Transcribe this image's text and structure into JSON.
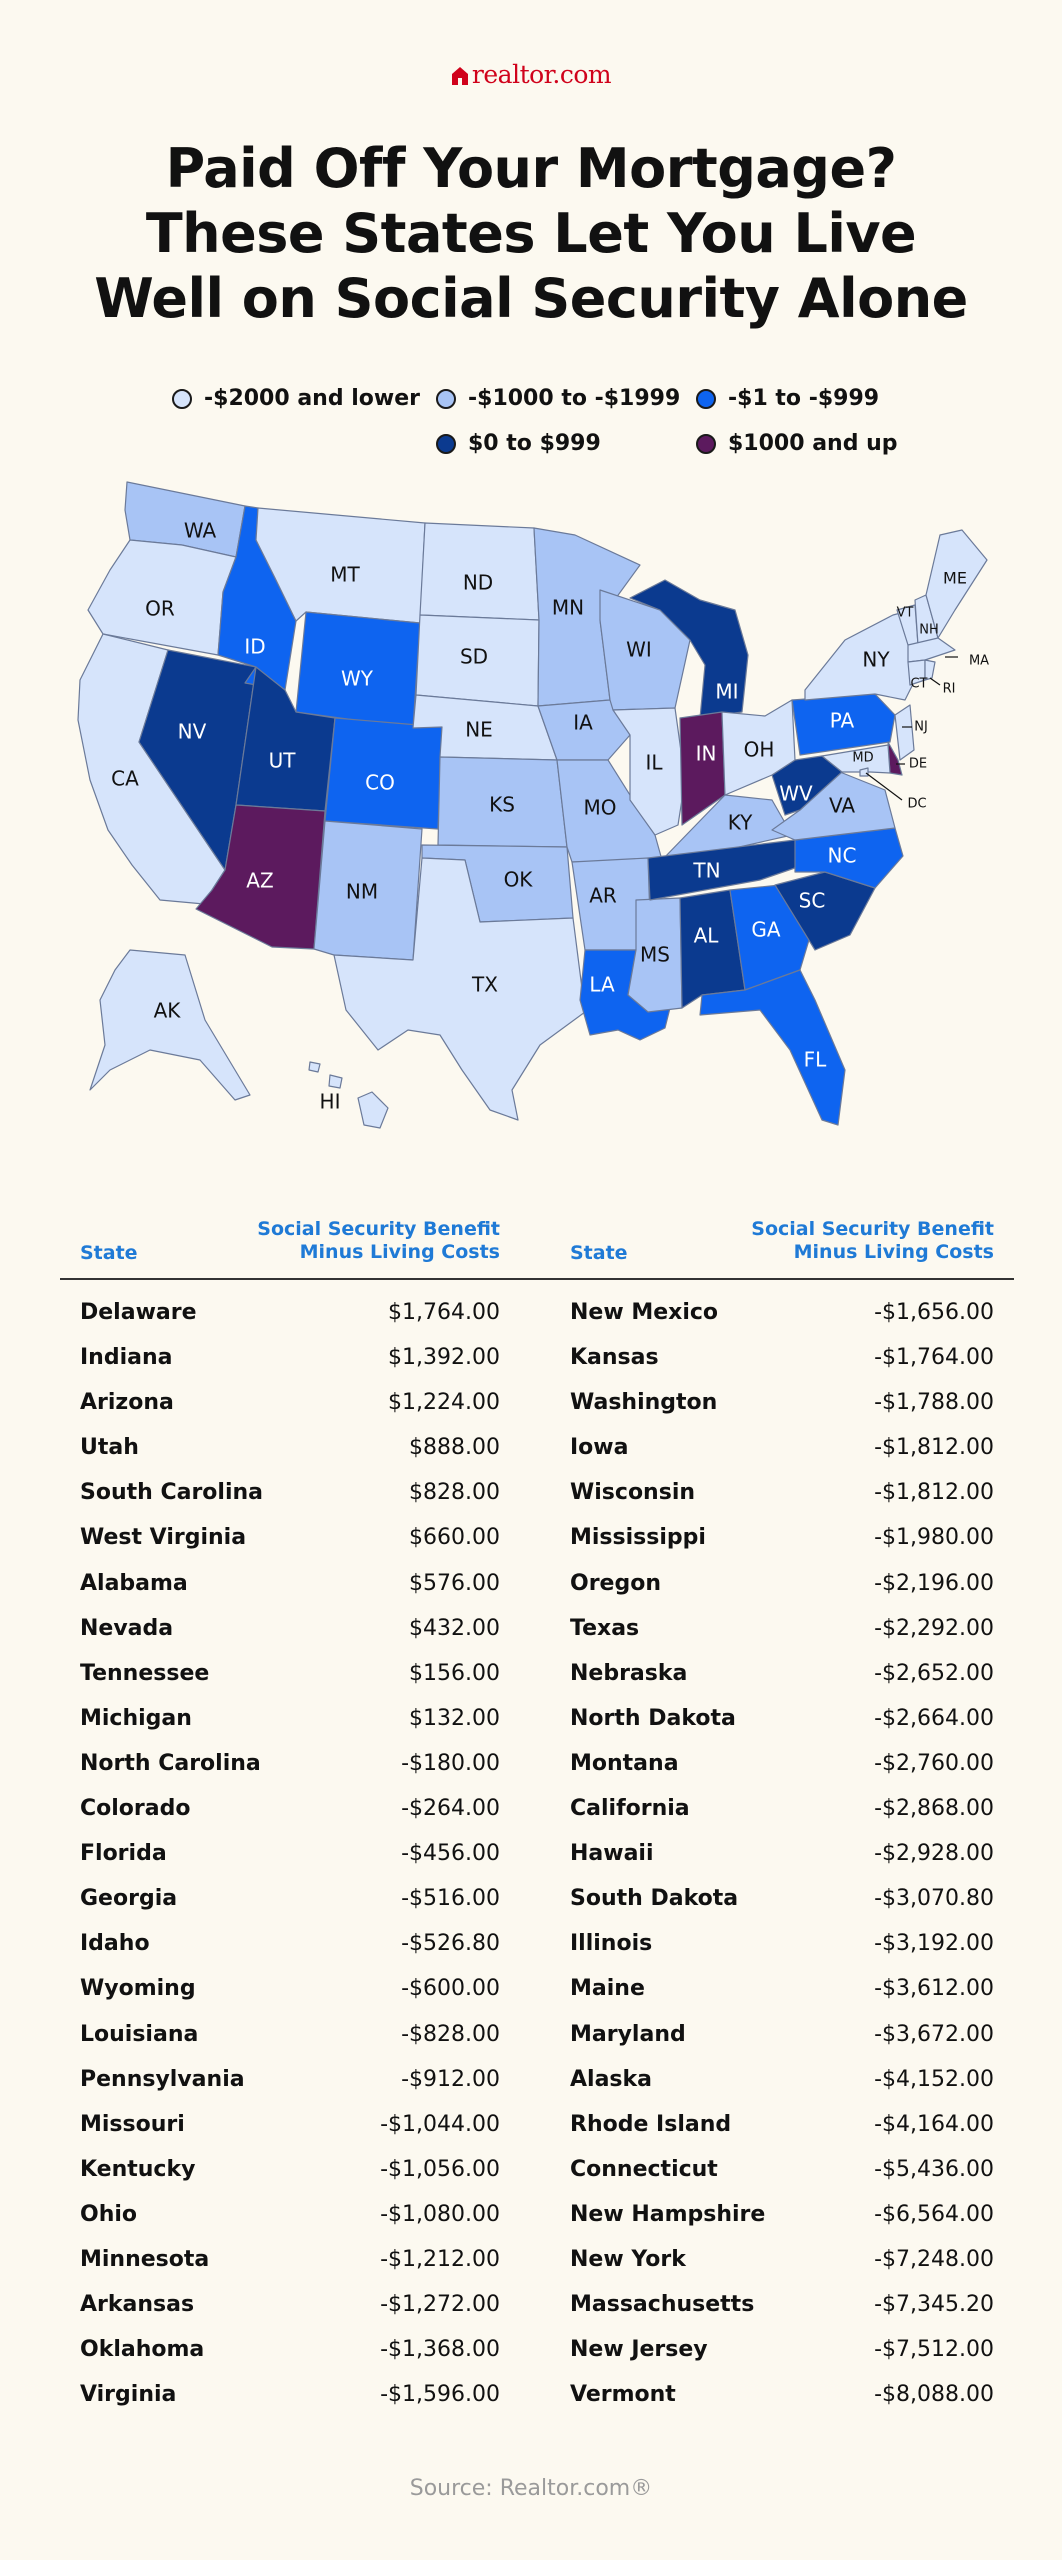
{
  "brand": {
    "logo_text": "realtor.com",
    "accent": "#d0021b"
  },
  "title": {
    "line1": "Paid Off Your Mortgage?",
    "line2": "These States Let You Live",
    "line3": "Well on Social Security Alone"
  },
  "legend": [
    {
      "label": "-$2000 and lower",
      "color": "#d6e4fb"
    },
    {
      "label": "-$1000 to -$1999",
      "color": "#a8c4f5"
    },
    {
      "label": "-$1 to -$999",
      "color": "#0e64f0"
    },
    {
      "label": "$0 to $999",
      "color": "#0b3a8f"
    },
    {
      "label": "$1000 and up",
      "color": "#5c1a5e"
    }
  ],
  "map_labels": {
    "WA": "WA",
    "OR": "OR",
    "CA": "CA",
    "NV": "NV",
    "ID": "ID",
    "MT": "MT",
    "WY": "WY",
    "UT": "UT",
    "AZ": "AZ",
    "CO": "CO",
    "NM": "NM",
    "ND": "ND",
    "SD": "SD",
    "NE": "NE",
    "KS": "KS",
    "OK": "OK",
    "TX": "TX",
    "MN": "MN",
    "IA": "IA",
    "MO": "MO",
    "AR": "AR",
    "LA": "LA",
    "WI": "WI",
    "IL": "IL",
    "MS": "MS",
    "MI": "MI",
    "IN": "IN",
    "KY": "KY",
    "TN": "TN",
    "AL": "AL",
    "OH": "OH",
    "WV": "WV",
    "VA": "VA",
    "NC": "NC",
    "SC": "SC",
    "GA": "GA",
    "FL": "FL",
    "PA": "PA",
    "NY": "NY",
    "VT": "VT",
    "NH": "NH",
    "ME": "ME",
    "MA": "MA",
    "CT": "CT",
    "RI": "RI",
    "NJ": "NJ",
    "DE": "DE",
    "MD": "MD",
    "DC": "DC",
    "AK": "AK",
    "HI": "HI"
  },
  "table": {
    "col_state": "State",
    "col_benefit_line1": "Social Security Benefit",
    "col_benefit_line2": "Minus Living Costs",
    "left": [
      {
        "state": "Delaware",
        "value": "$1,764.00"
      },
      {
        "state": "Indiana",
        "value": "$1,392.00"
      },
      {
        "state": "Arizona",
        "value": "$1,224.00"
      },
      {
        "state": "Utah",
        "value": "$888.00"
      },
      {
        "state": "South Carolina",
        "value": "$828.00"
      },
      {
        "state": "West Virginia",
        "value": "$660.00"
      },
      {
        "state": "Alabama",
        "value": "$576.00"
      },
      {
        "state": "Nevada",
        "value": "$432.00"
      },
      {
        "state": "Tennessee",
        "value": "$156.00"
      },
      {
        "state": "Michigan",
        "value": "$132.00"
      },
      {
        "state": "North Carolina",
        "value": "-$180.00"
      },
      {
        "state": "Colorado",
        "value": "-$264.00"
      },
      {
        "state": "Florida",
        "value": "-$456.00"
      },
      {
        "state": "Georgia",
        "value": "-$516.00"
      },
      {
        "state": "Idaho",
        "value": "-$526.80"
      },
      {
        "state": "Wyoming",
        "value": "-$600.00"
      },
      {
        "state": "Louisiana",
        "value": "-$828.00"
      },
      {
        "state": "Pennsylvania",
        "value": "-$912.00"
      },
      {
        "state": "Missouri",
        "value": "-$1,044.00"
      },
      {
        "state": "Kentucky",
        "value": "-$1,056.00"
      },
      {
        "state": "Ohio",
        "value": "-$1,080.00"
      },
      {
        "state": "Minnesota",
        "value": "-$1,212.00"
      },
      {
        "state": "Arkansas",
        "value": "-$1,272.00"
      },
      {
        "state": "Oklahoma",
        "value": "-$1,368.00"
      },
      {
        "state": "Virginia",
        "value": "-$1,596.00"
      }
    ],
    "right": [
      {
        "state": "New Mexico",
        "value": "-$1,656.00"
      },
      {
        "state": "Kansas",
        "value": "-$1,764.00"
      },
      {
        "state": "Washington",
        "value": "-$1,788.00"
      },
      {
        "state": "Iowa",
        "value": "-$1,812.00"
      },
      {
        "state": "Wisconsin",
        "value": "-$1,812.00"
      },
      {
        "state": "Mississippi",
        "value": "-$1,980.00"
      },
      {
        "state": "Oregon",
        "value": "-$2,196.00"
      },
      {
        "state": "Texas",
        "value": "-$2,292.00"
      },
      {
        "state": "Nebraska",
        "value": "-$2,652.00"
      },
      {
        "state": "North Dakota",
        "value": "-$2,664.00"
      },
      {
        "state": "Montana",
        "value": "-$2,760.00"
      },
      {
        "state": "California",
        "value": "-$2,868.00"
      },
      {
        "state": "Hawaii",
        "value": "-$2,928.00"
      },
      {
        "state": "South Dakota",
        "value": "-$3,070.80"
      },
      {
        "state": "Illinois",
        "value": "-$3,192.00"
      },
      {
        "state": "Maine",
        "value": "-$3,612.00"
      },
      {
        "state": "Maryland",
        "value": "-$3,672.00"
      },
      {
        "state": "Alaska",
        "value": "-$4,152.00"
      },
      {
        "state": "Rhode Island",
        "value": "-$4,164.00"
      },
      {
        "state": "Connecticut",
        "value": "-$5,436.00"
      },
      {
        "state": "New Hampshire",
        "value": "-$6,564.00"
      },
      {
        "state": "New York",
        "value": "-$7,248.00"
      },
      {
        "state": "Massachusetts",
        "value": "-$7,345.20"
      },
      {
        "state": "New Jersey",
        "value": "-$7,512.00"
      },
      {
        "state": "Vermont",
        "value": "-$8,088.00"
      }
    ]
  },
  "source": "Source: Realtor.com®"
}
